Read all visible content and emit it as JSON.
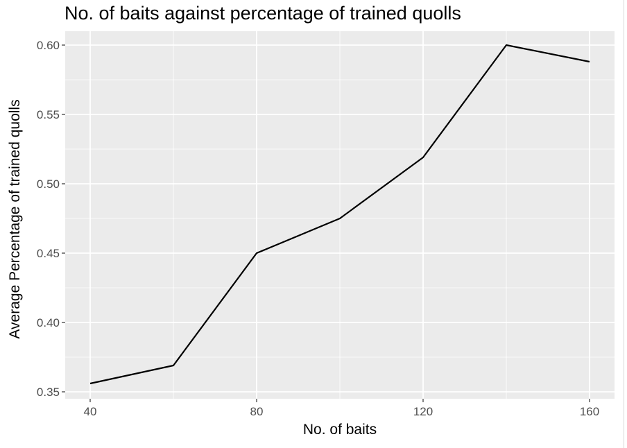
{
  "chart_data": {
    "type": "line",
    "title": "No. of baits against percentage of trained quolls",
    "xlabel": "No. of baits",
    "ylabel": "Average Percentage of trained quolls",
    "x": [
      40,
      60,
      80,
      100,
      120,
      140,
      160
    ],
    "series": [
      {
        "values": [
          0.356,
          0.369,
          0.45,
          0.475,
          0.519,
          0.6,
          0.588
        ]
      }
    ],
    "xlim": [
      34,
      166
    ],
    "ylim": [
      0.345,
      0.61
    ],
    "x_ticks": [
      40,
      80,
      120,
      160
    ],
    "x_tick_labels": [
      "40",
      "80",
      "120",
      "160"
    ],
    "y_ticks": [
      0.35,
      0.4,
      0.45,
      0.5,
      0.55,
      0.6
    ],
    "y_tick_labels": [
      "0.35",
      "0.40",
      "0.45",
      "0.50",
      "0.55",
      "0.60"
    ],
    "grid": true,
    "colors": {
      "panel": "#ebebeb",
      "grid": "#ffffff",
      "line": "#000000",
      "tick_text": "#4d4d4d",
      "tick_mark": "#333333"
    }
  }
}
